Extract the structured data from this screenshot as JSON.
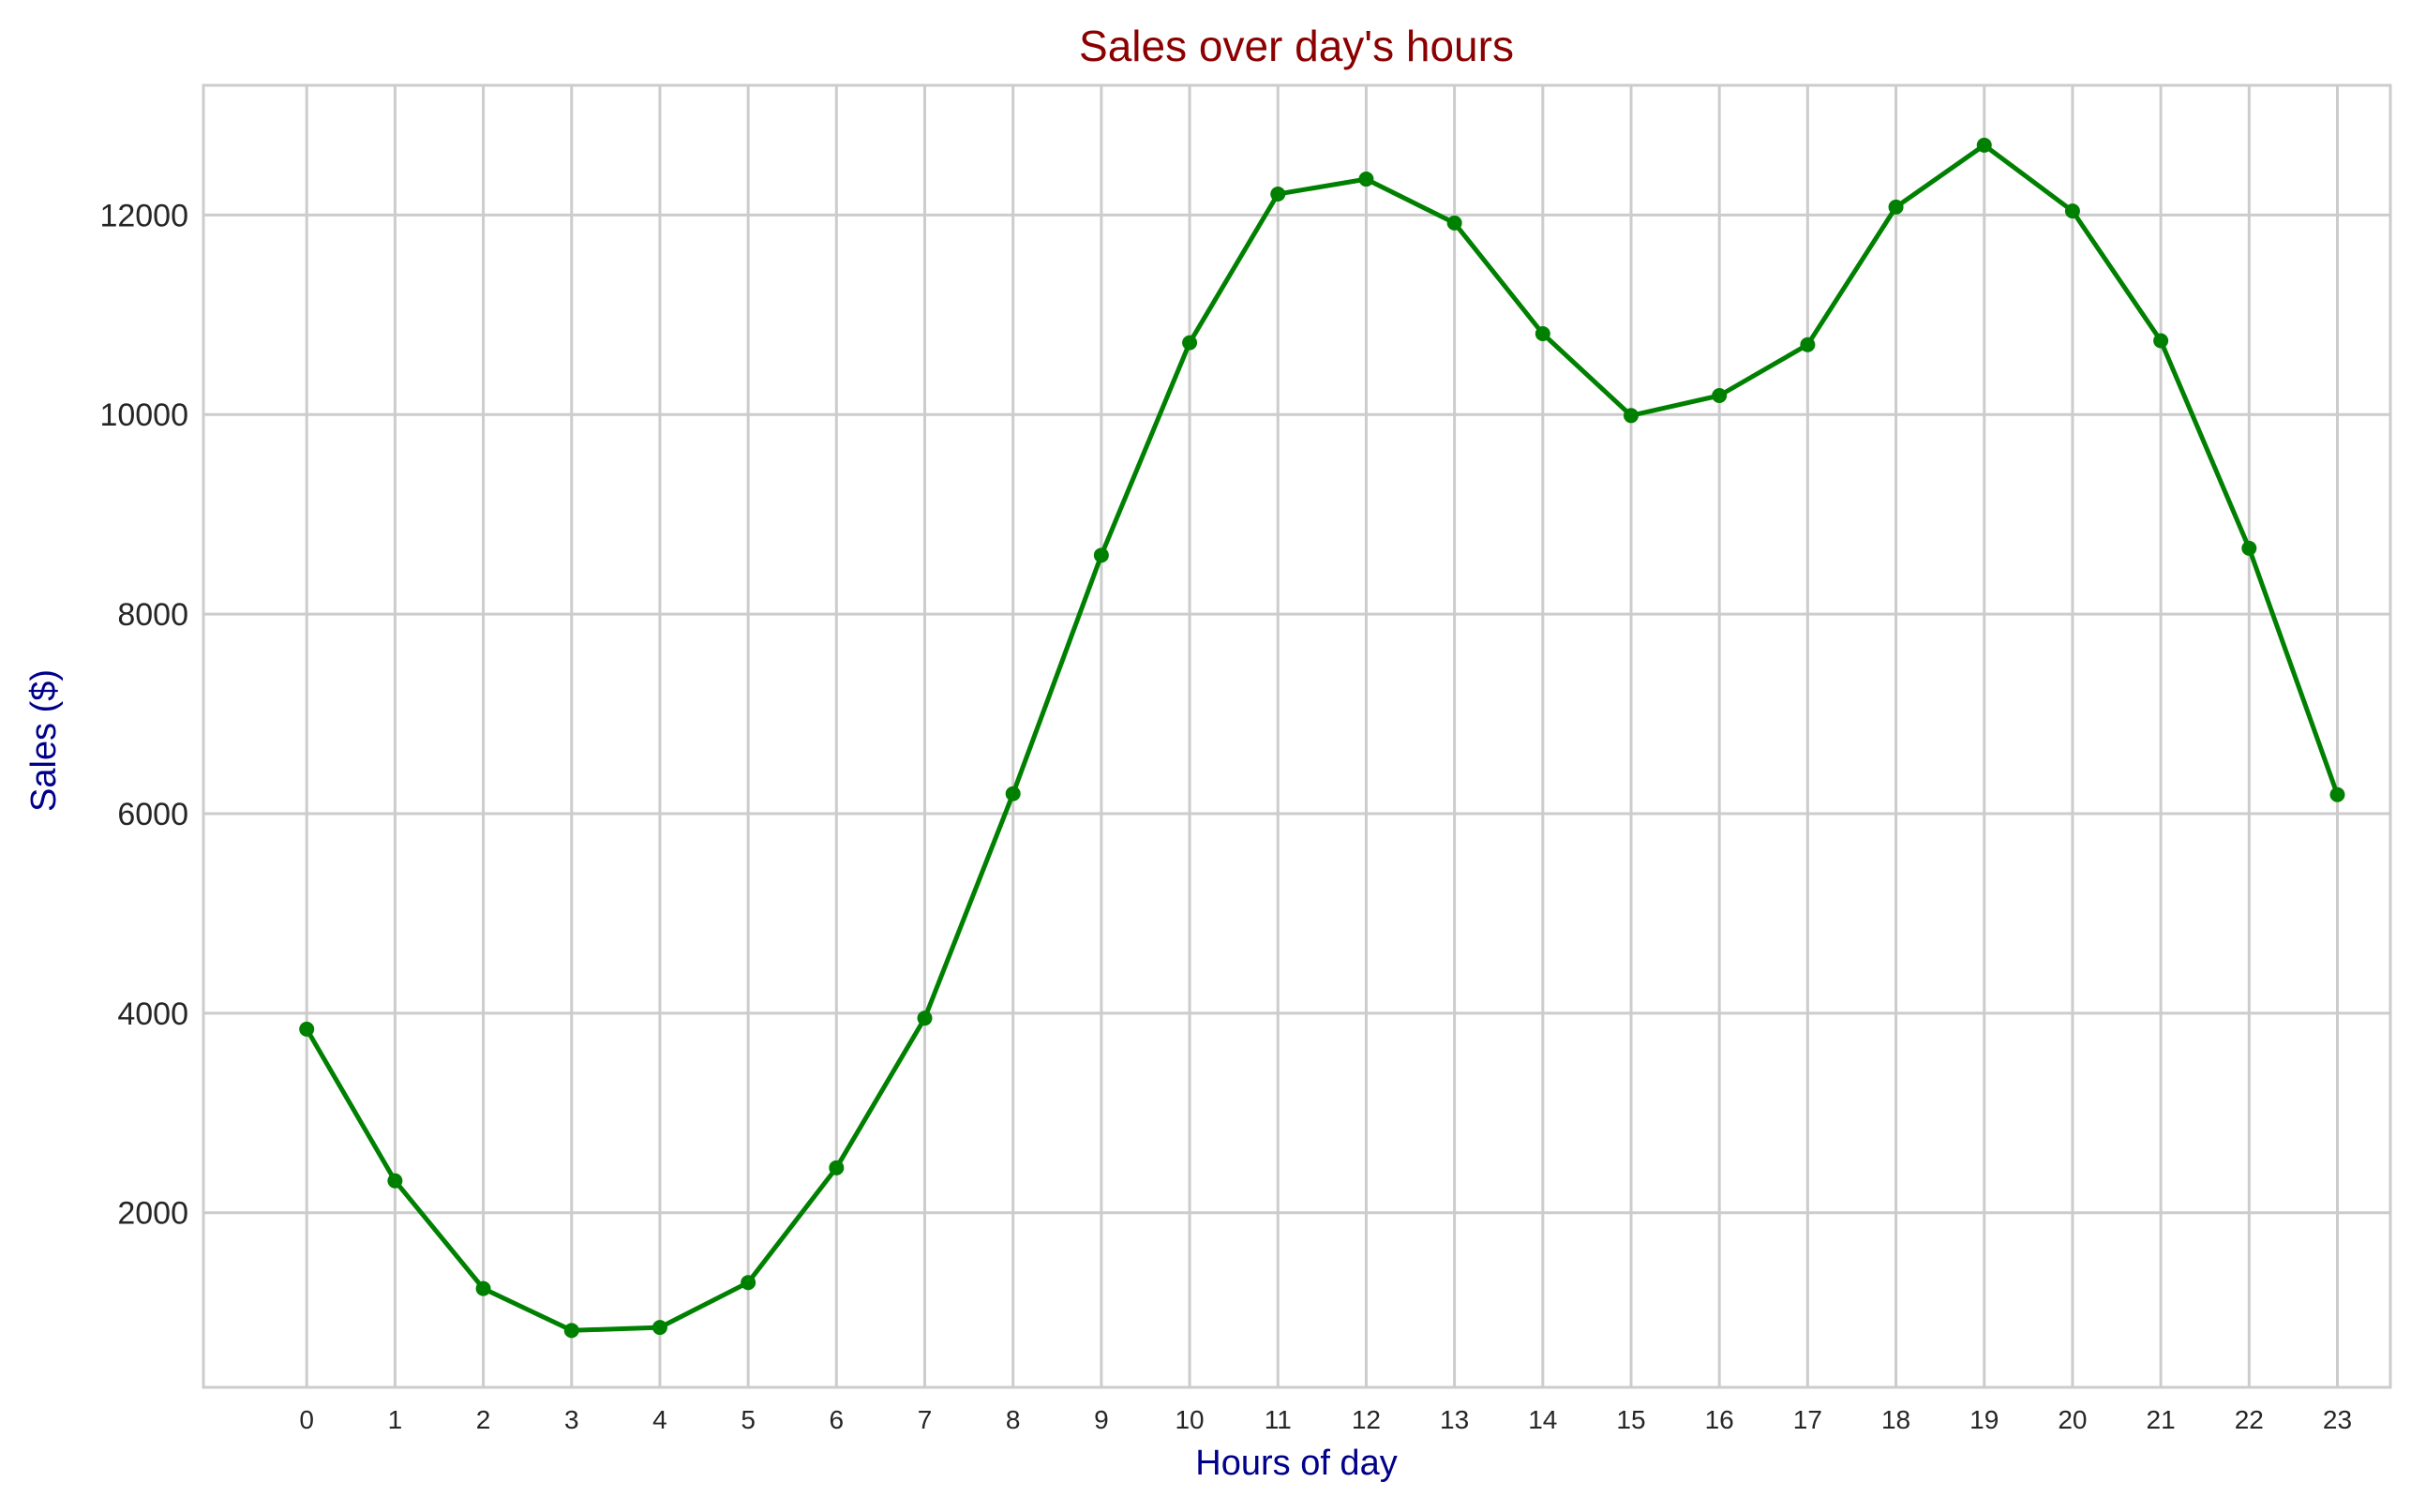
{
  "chart_data": {
    "type": "line",
    "title": "Sales over day's hours",
    "xlabel": "Hours of day",
    "ylabel": "Sales ($)",
    "x": [
      0,
      1,
      2,
      3,
      4,
      5,
      6,
      7,
      8,
      9,
      10,
      11,
      12,
      13,
      14,
      15,
      16,
      17,
      18,
      19,
      20,
      21,
      22,
      23
    ],
    "x_tick_labels": [
      "0",
      "1",
      "2",
      "3",
      "4",
      "5",
      "6",
      "7",
      "8",
      "9",
      "10",
      "11",
      "12",
      "13",
      "14",
      "15",
      "16",
      "17",
      "18",
      "19",
      "20",
      "21",
      "22",
      "23"
    ],
    "series": [
      {
        "values": [
          3840,
          2320,
          1240,
          820,
          850,
          1300,
          2450,
          3950,
          6200,
          8590,
          10720,
          12210,
          12360,
          11920,
          10810,
          9990,
          10190,
          10700,
          12080,
          12700,
          12040,
          10740,
          8660,
          6190
        ],
        "color": "#008000",
        "marker": "circle"
      }
    ],
    "xlim": [
      -1.17,
      23.6
    ],
    "ylim": [
      250,
      13300
    ],
    "y_ticks": [
      2000,
      4000,
      6000,
      8000,
      10000,
      12000
    ],
    "y_tick_labels": [
      "2000",
      "4000",
      "6000",
      "8000",
      "10000",
      "12000"
    ],
    "grid": true,
    "legend": false,
    "colors": {
      "title": "#8b0000",
      "axis_labels": "#00008b",
      "line": "#008000",
      "grid": "#cccccc",
      "tick_text": "#262626"
    }
  }
}
